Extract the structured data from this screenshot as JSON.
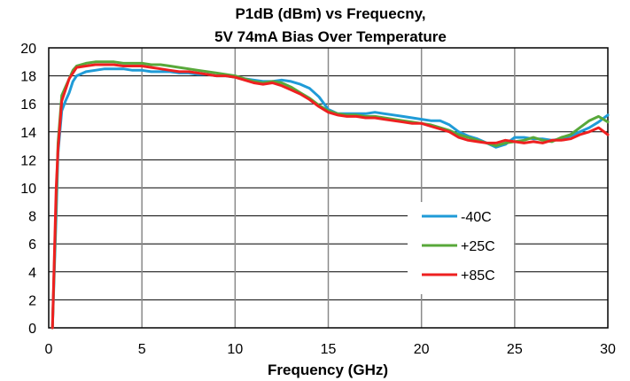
{
  "chart_data": {
    "type": "line",
    "title": "P1dB (dBm) vs Frequecny,",
    "subtitle": "5V 74mA Bias Over Temperature",
    "xlabel": "Frequency (GHz)",
    "ylabel": "",
    "xlim": [
      0,
      30
    ],
    "ylim": [
      0,
      20
    ],
    "xticks": [
      "0",
      "5",
      "10",
      "15",
      "20",
      "25",
      "30"
    ],
    "yticks": [
      "0",
      "2",
      "4",
      "6",
      "8",
      "10",
      "12",
      "14",
      "16",
      "18",
      "20"
    ],
    "grid": true,
    "legend_position": "right-middle",
    "series": [
      {
        "name": "-40C",
        "color": "#1f9bd7",
        "x": [
          0.2,
          0.4,
          0.5,
          0.7,
          0.9,
          1.1,
          1.3,
          1.5,
          2,
          2.5,
          3,
          3.5,
          4,
          4.5,
          5,
          5.5,
          6,
          6.5,
          7,
          7.5,
          8,
          8.5,
          9,
          9.5,
          10,
          10.5,
          11,
          11.5,
          12,
          12.5,
          13,
          13.5,
          14,
          14.5,
          15,
          15.5,
          16,
          16.5,
          17,
          17.5,
          18,
          18.5,
          19,
          19.5,
          20,
          20.5,
          21,
          21.5,
          22,
          22.5,
          23,
          23.5,
          24,
          24.5,
          25,
          25.5,
          26,
          26.5,
          27,
          27.5,
          28,
          28.5,
          29,
          29.5,
          30
        ],
        "y": [
          0,
          8,
          12.5,
          15.5,
          16.2,
          16.8,
          17.6,
          18.0,
          18.3,
          18.4,
          18.5,
          18.5,
          18.5,
          18.4,
          18.4,
          18.3,
          18.3,
          18.3,
          18.2,
          18.2,
          18.1,
          18.1,
          18.0,
          18.0,
          17.9,
          17.8,
          17.7,
          17.6,
          17.6,
          17.7,
          17.6,
          17.4,
          17.1,
          16.5,
          15.6,
          15.3,
          15.3,
          15.3,
          15.3,
          15.4,
          15.3,
          15.2,
          15.1,
          15.0,
          14.9,
          14.8,
          14.8,
          14.5,
          14.0,
          13.7,
          13.5,
          13.2,
          12.9,
          13.1,
          13.6,
          13.6,
          13.5,
          13.5,
          13.4,
          13.5,
          13.7,
          14.0,
          14.3,
          14.7,
          15.2
        ]
      },
      {
        "name": "+25C",
        "color": "#58a83a",
        "x": [
          0.2,
          0.4,
          0.5,
          0.7,
          0.9,
          1.1,
          1.3,
          1.5,
          2,
          2.5,
          3,
          3.5,
          4,
          4.5,
          5,
          5.5,
          6,
          6.5,
          7,
          7.5,
          8,
          8.5,
          9,
          9.5,
          10,
          10.5,
          11,
          11.5,
          12,
          12.5,
          13,
          13.5,
          14,
          14.5,
          15,
          15.5,
          16,
          16.5,
          17,
          17.5,
          18,
          18.5,
          19,
          19.5,
          20,
          20.5,
          21,
          21.5,
          22,
          22.5,
          23,
          23.5,
          24,
          24.5,
          25,
          25.5,
          26,
          26.5,
          27,
          27.5,
          28,
          28.5,
          29,
          29.5,
          30
        ],
        "y": [
          0,
          9,
          13.2,
          16.6,
          17.2,
          17.8,
          18.4,
          18.7,
          18.9,
          19.0,
          19.0,
          19.0,
          18.9,
          18.9,
          18.9,
          18.8,
          18.8,
          18.7,
          18.6,
          18.5,
          18.4,
          18.3,
          18.2,
          18.1,
          18.0,
          17.8,
          17.6,
          17.5,
          17.6,
          17.5,
          17.2,
          16.8,
          16.4,
          15.9,
          15.5,
          15.3,
          15.2,
          15.2,
          15.1,
          15.1,
          15.0,
          14.9,
          14.8,
          14.7,
          14.6,
          14.5,
          14.3,
          14.1,
          13.8,
          13.6,
          13.4,
          13.2,
          13.0,
          13.2,
          13.3,
          13.4,
          13.6,
          13.4,
          13.3,
          13.6,
          13.8,
          14.3,
          14.8,
          15.1,
          14.7
        ]
      },
      {
        "name": "+85C",
        "color": "#ee2020",
        "x": [
          0.2,
          0.4,
          0.5,
          0.7,
          0.9,
          1.1,
          1.3,
          1.5,
          2,
          2.5,
          3,
          3.5,
          4,
          4.5,
          5,
          5.5,
          6,
          6.5,
          7,
          7.5,
          8,
          8.5,
          9,
          9.5,
          10,
          10.5,
          11,
          11.5,
          12,
          12.5,
          13,
          13.5,
          14,
          14.5,
          15,
          15.5,
          16,
          16.5,
          17,
          17.5,
          18,
          18.5,
          19,
          19.5,
          20,
          20.5,
          21,
          21.5,
          22,
          22.5,
          23,
          23.5,
          24,
          24.5,
          25,
          25.5,
          26,
          26.5,
          27,
          27.5,
          28,
          28.5,
          29,
          29.5,
          30
        ],
        "y": [
          0,
          10,
          12.8,
          16.2,
          17.0,
          17.8,
          18.2,
          18.6,
          18.7,
          18.8,
          18.8,
          18.8,
          18.7,
          18.7,
          18.7,
          18.6,
          18.5,
          18.4,
          18.3,
          18.3,
          18.2,
          18.1,
          18.0,
          18.0,
          17.9,
          17.7,
          17.5,
          17.4,
          17.5,
          17.3,
          17.0,
          16.7,
          16.3,
          15.8,
          15.4,
          15.2,
          15.1,
          15.1,
          15.0,
          15.0,
          14.9,
          14.8,
          14.7,
          14.6,
          14.6,
          14.4,
          14.2,
          14.0,
          13.6,
          13.4,
          13.3,
          13.2,
          13.2,
          13.4,
          13.3,
          13.2,
          13.3,
          13.2,
          13.4,
          13.4,
          13.5,
          13.8,
          14.0,
          14.3,
          13.8
        ]
      }
    ]
  }
}
